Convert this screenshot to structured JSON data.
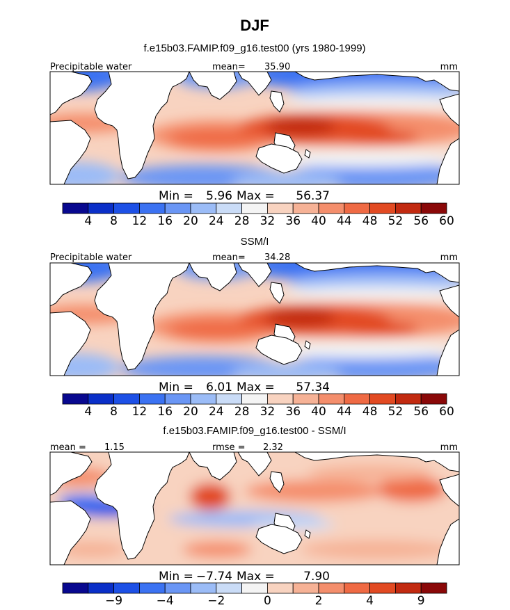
{
  "figure": {
    "title": "DJF"
  },
  "chart_data": [
    {
      "type": "heatmap",
      "title": "f.e15b03.FAMIP.f09_g16.test00 (yrs 1980-1999)",
      "left_label": "Precipitable water",
      "stat_label": "mean=",
      "stat_value": "35.90",
      "units": "mm",
      "min_label": "Min =",
      "min_value": "5.96",
      "max_label": "Max =",
      "max_value": "56.37",
      "min": 5.96,
      "max": 56.37,
      "mean": 35.9,
      "colorbar": {
        "levels": [
          "4",
          "8",
          "12",
          "16",
          "20",
          "24",
          "28",
          "32",
          "36",
          "40",
          "44",
          "48",
          "52",
          "56",
          "60"
        ],
        "colors": [
          "#08088f",
          "#0a2fc8",
          "#1d50e6",
          "#3b72f2",
          "#6a96f5",
          "#9bbcf7",
          "#cadcf7",
          "#f4f4f4",
          "#f8d3c0",
          "#f6b296",
          "#f48e6c",
          "#ef6a44",
          "#e24a22",
          "#c22a10",
          "#8a0808"
        ]
      },
      "pattern": "absolute"
    },
    {
      "type": "heatmap",
      "title": "SSM/I",
      "left_label": "Precipitable water",
      "stat_label": "mean=",
      "stat_value": "34.28",
      "units": "mm",
      "min_label": "Min =",
      "min_value": "6.01",
      "max_label": "Max =",
      "max_value": "57.34",
      "min": 6.01,
      "max": 57.34,
      "mean": 34.28,
      "colorbar": {
        "levels": [
          "4",
          "8",
          "12",
          "16",
          "20",
          "24",
          "28",
          "32",
          "36",
          "40",
          "44",
          "48",
          "52",
          "56",
          "60"
        ],
        "colors": [
          "#08088f",
          "#0a2fc8",
          "#1d50e6",
          "#3b72f2",
          "#6a96f5",
          "#9bbcf7",
          "#cadcf7",
          "#f4f4f4",
          "#f8d3c0",
          "#f6b296",
          "#f48e6c",
          "#ef6a44",
          "#e24a22",
          "#c22a10",
          "#8a0808"
        ]
      },
      "pattern": "absolute"
    },
    {
      "type": "heatmap",
      "title": "f.e15b03.FAMIP.f09_g16.test00 - SSM/I",
      "left_label": "mean =",
      "left_value": "1.15",
      "stat_label": "rmse =",
      "stat_value": "2.32",
      "units": "mm",
      "min_label": "Min =",
      "min_value": "−7.74",
      "max_label": "Max =",
      "max_value": "7.90",
      "min": -7.74,
      "max": 7.9,
      "mean": 1.15,
      "rmse": 2.32,
      "colorbar": {
        "levels": [
          "",
          "−9",
          "",
          "−4",
          "",
          "−2",
          "",
          "0",
          "",
          "2",
          "",
          "4",
          "",
          "9",
          ""
        ],
        "colors": [
          "#08088f",
          "#0a2fc8",
          "#1d50e6",
          "#3b72f2",
          "#6a96f5",
          "#9bbcf7",
          "#cadcf7",
          "#f4f4f4",
          "#f8d3c0",
          "#f6b296",
          "#f48e6c",
          "#ef6a44",
          "#e24a22",
          "#c22a10",
          "#8a0808"
        ]
      },
      "pattern": "difference"
    }
  ]
}
